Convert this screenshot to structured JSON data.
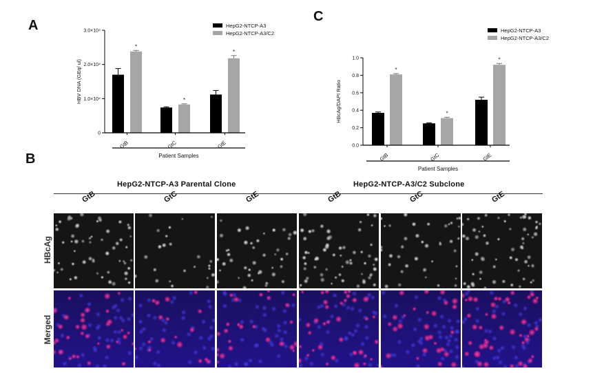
{
  "panels": {
    "a": "A",
    "b": "B",
    "c": "C"
  },
  "chart_data": [
    {
      "panel": "A",
      "type": "bar",
      "categories": [
        "GtB",
        "GtC",
        "GtE"
      ],
      "series": [
        {
          "name": "HepG2-NTCP-A3",
          "color": "#000000",
          "values": [
            17000,
            7400,
            11200
          ],
          "errors": [
            1800,
            200,
            1200
          ]
        },
        {
          "name": "HepG2-NTCP-A3/C2",
          "color": "#a6a6a6",
          "values": [
            23800,
            8300,
            21800
          ],
          "errors": [
            300,
            200,
            800
          ]
        }
      ],
      "significance": [
        "*",
        "*",
        "*"
      ],
      "ylabel": "HBV DNA (GEq/ ul)",
      "xlabel": "Patient Samples",
      "ylim": [
        0,
        30000
      ],
      "yticks": [
        0,
        10000,
        20000,
        30000
      ],
      "ytick_labels": [
        "0",
        "1.0×10⁴",
        "2.0×10⁴",
        "3.0×10⁴"
      ],
      "legend_position": "top-right"
    },
    {
      "panel": "C",
      "type": "bar",
      "categories": [
        "GtB",
        "GtC",
        "GtE"
      ],
      "series": [
        {
          "name": "HepG2-NTCP-A3",
          "color": "#000000",
          "values": [
            0.37,
            0.25,
            0.52
          ],
          "errors": [
            0.01,
            0.005,
            0.03
          ]
        },
        {
          "name": "HepG2-NTCP-A3/C2",
          "color": "#a6a6a6",
          "values": [
            0.81,
            0.31,
            0.92
          ],
          "errors": [
            0.01,
            0.01,
            0.015
          ]
        }
      ],
      "significance": [
        "*",
        "*",
        "*"
      ],
      "ylabel": "HBcAg/DAPI Ratio",
      "xlabel": "Patient Samples",
      "ylim": [
        0,
        1.0
      ],
      "yticks": [
        0,
        0.2,
        0.4,
        0.6,
        0.8,
        1.0
      ],
      "ytick_labels": [
        "0.0",
        "0.2",
        "0.4",
        "0.6",
        "0.8",
        "1.0"
      ],
      "legend_position": "top-right"
    }
  ],
  "micrographs": {
    "groups": [
      "HepG2-NTCP-A3 Parental Clone",
      "HepG2-NTCP-A3/C2 Subclone"
    ],
    "columns": [
      "GtB",
      "GtC",
      "GtE",
      "GtB",
      "GtC",
      "GtE"
    ],
    "rows": [
      "HBcAg",
      "Merged"
    ],
    "hbcag_density": [
      0.8,
      0.35,
      0.6,
      0.85,
      0.55,
      0.9
    ],
    "merged_red_density": [
      0.6,
      0.3,
      0.45,
      0.65,
      0.5,
      0.8
    ]
  }
}
